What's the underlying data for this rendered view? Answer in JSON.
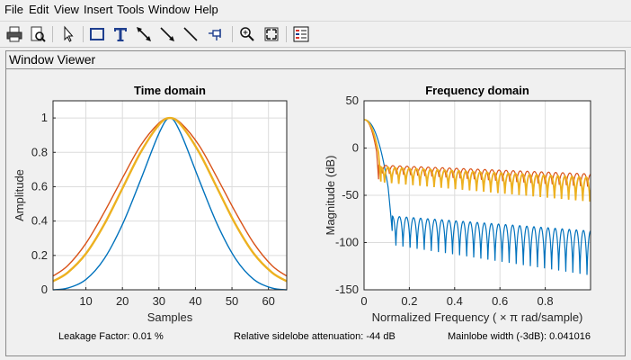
{
  "menu": [
    "File",
    "Edit",
    "View",
    "Insert",
    "Tools",
    "Window",
    "Help"
  ],
  "toolbar": {
    "buttons": [
      {
        "name": "print-icon"
      },
      {
        "name": "print-preview-icon"
      },
      {
        "name": "select-pointer-icon"
      },
      {
        "name": "insert-rectangle-icon"
      },
      {
        "name": "insert-text-icon"
      },
      {
        "name": "insert-double-arrow-icon"
      },
      {
        "name": "insert-arrow-icon"
      },
      {
        "name": "insert-line-icon"
      },
      {
        "name": "pin-icon"
      },
      {
        "name": "zoom-in-icon"
      },
      {
        "name": "full-view-icon"
      },
      {
        "name": "legend-icon"
      }
    ]
  },
  "panel": {
    "title": "Window Viewer"
  },
  "footer": {
    "leakage": "Leakage Factor: 0.01 %",
    "sidelobe": "Relative sidelobe attenuation: -44 dB",
    "mainlobe": "Mainlobe width (-3dB): 0.041016"
  },
  "colors": {
    "series1": "#0072bd",
    "series2": "#d95319",
    "series3": "#edb120"
  },
  "chart_data": [
    {
      "type": "line",
      "title": "Time domain",
      "xlabel": "Samples",
      "ylabel": "Amplitude",
      "xlim": [
        1,
        65
      ],
      "ylim": [
        0,
        1.1
      ],
      "xticks": [
        10,
        20,
        30,
        40,
        50,
        60
      ],
      "yticks": [
        0,
        0.2,
        0.4,
        0.6,
        0.8,
        1
      ],
      "ytick_labels": [
        "0",
        "0.2",
        "0.4",
        "0.6",
        "0.8",
        "1"
      ],
      "grid": true,
      "series": [
        {
          "color": "#0072bd",
          "x": [
            1,
            5,
            10,
            15,
            20,
            25,
            30,
            33,
            36,
            41,
            46,
            51,
            56,
            61,
            65
          ],
          "y": [
            0,
            0.01,
            0.06,
            0.18,
            0.38,
            0.64,
            0.91,
            1.0,
            0.91,
            0.64,
            0.38,
            0.18,
            0.06,
            0.01,
            0
          ]
        },
        {
          "color": "#d95319",
          "x": [
            1,
            5,
            10,
            15,
            20,
            25,
            30,
            33,
            36,
            41,
            46,
            51,
            56,
            61,
            65
          ],
          "y": [
            0.08,
            0.14,
            0.27,
            0.45,
            0.65,
            0.84,
            0.97,
            1.0,
            0.97,
            0.84,
            0.65,
            0.45,
            0.27,
            0.14,
            0.08
          ]
        },
        {
          "color": "#edb120",
          "x": [
            1,
            5,
            10,
            15,
            20,
            25,
            30,
            33,
            36,
            41,
            46,
            51,
            56,
            61,
            65
          ],
          "y": [
            0.05,
            0.1,
            0.21,
            0.38,
            0.59,
            0.8,
            0.96,
            1.0,
            0.96,
            0.8,
            0.59,
            0.38,
            0.21,
            0.1,
            0.05
          ]
        }
      ]
    },
    {
      "type": "line",
      "title": "Frequency domain",
      "xlabel": "Normalized Frequency  ( × π rad/sample)",
      "ylabel": "Magnitude (dB)",
      "xlim": [
        0,
        1
      ],
      "ylim": [
        -150,
        50
      ],
      "xticks": [
        0,
        0.2,
        0.4,
        0.6,
        0.8
      ],
      "xtick_labels": [
        "0",
        "0.2",
        "0.4",
        "0.6",
        "0.8"
      ],
      "yticks": [
        50,
        0,
        -50,
        -100,
        -150
      ],
      "grid": true,
      "series": [
        {
          "color": "#0072bd",
          "mainlobe_null": 0.125,
          "floor": -72,
          "decay_db": 18,
          "null_depth": 55
        },
        {
          "color": "#d95319",
          "mainlobe_null": 0.065,
          "floor": -18,
          "decay_db": 10,
          "null_depth": 16
        },
        {
          "color": "#edb120",
          "mainlobe_null": 0.075,
          "floor": -20,
          "decay_db": 12,
          "null_depth": 30
        }
      ]
    }
  ]
}
